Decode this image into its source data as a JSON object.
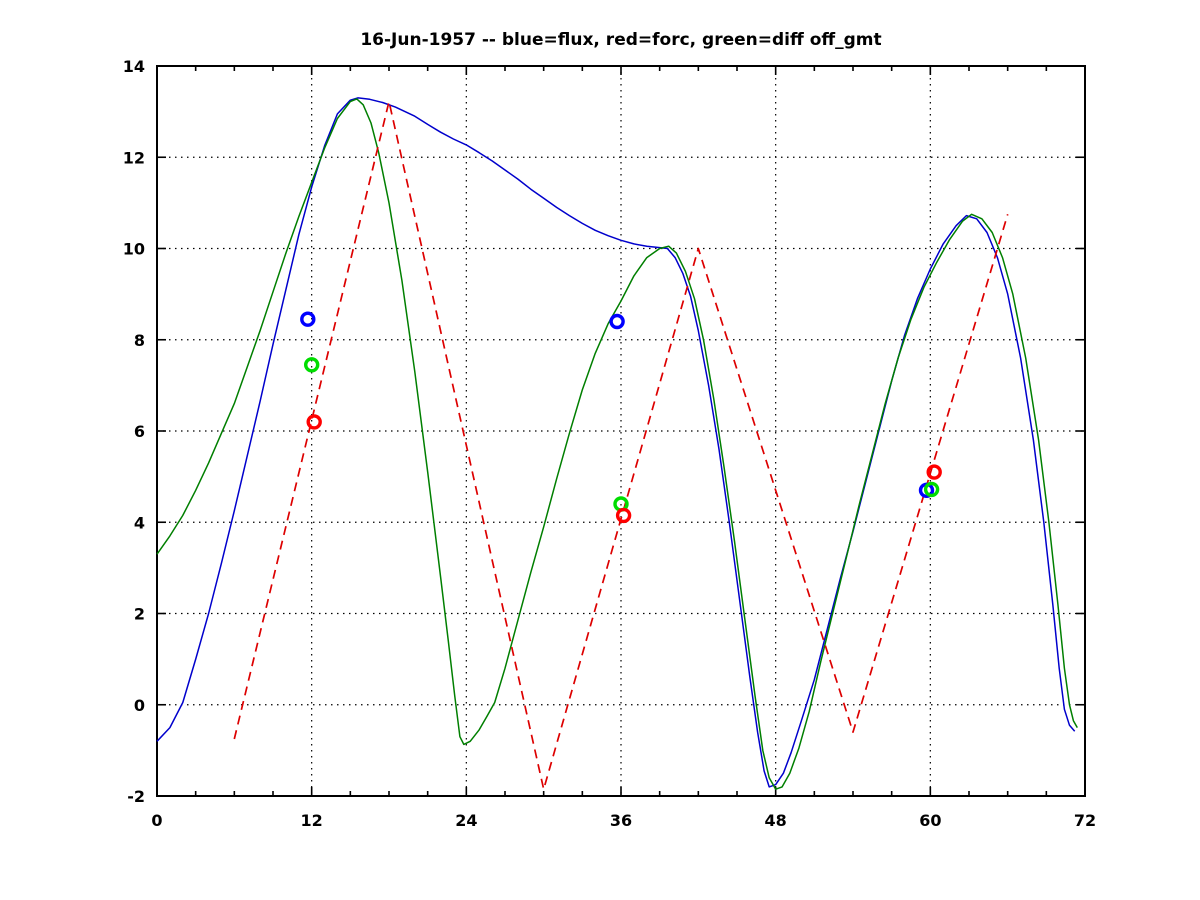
{
  "chart_data": {
    "type": "line",
    "title": "16-Jun-1957 -- blue=flux, red=forc, green=diff off_gmt",
    "xlabel": "",
    "ylabel": "",
    "xlim": [
      0,
      72
    ],
    "ylim": [
      -2,
      14
    ],
    "xticks": [
      0,
      12,
      24,
      36,
      48,
      60,
      72
    ],
    "yticks": [
      -2,
      0,
      2,
      4,
      6,
      8,
      10,
      12,
      14
    ],
    "xminor_step": 3,
    "grid": "dotted",
    "grid_color": "#000000",
    "axes_color": "#000000",
    "background": "#ffffff",
    "legend_in_title": [
      {
        "label": "flux",
        "color_word": "blue"
      },
      {
        "label": "forc",
        "color_word": "red"
      },
      {
        "label": "diff",
        "color_word": "green"
      }
    ],
    "series": [
      {
        "name": "flux",
        "color": "#0000cc",
        "style": "solid",
        "points": [
          [
            0,
            -0.8
          ],
          [
            1,
            -0.5
          ],
          [
            2,
            0.05
          ],
          [
            3,
            1.0
          ],
          [
            4,
            2.0
          ],
          [
            5,
            3.1
          ],
          [
            6,
            4.25
          ],
          [
            7,
            5.45
          ],
          [
            8,
            6.65
          ],
          [
            9,
            7.9
          ],
          [
            10,
            9.1
          ],
          [
            11,
            10.3
          ],
          [
            12,
            11.35
          ],
          [
            13,
            12.25
          ],
          [
            14,
            12.95
          ],
          [
            15,
            13.25
          ],
          [
            15.6,
            13.3
          ],
          [
            16.5,
            13.27
          ],
          [
            17.5,
            13.2
          ],
          [
            18.5,
            13.1
          ],
          [
            20,
            12.9
          ],
          [
            21,
            12.72
          ],
          [
            22,
            12.55
          ],
          [
            23,
            12.4
          ],
          [
            24,
            12.27
          ],
          [
            25,
            12.1
          ],
          [
            26,
            11.92
          ],
          [
            27,
            11.72
          ],
          [
            28,
            11.52
          ],
          [
            29,
            11.3
          ],
          [
            30,
            11.1
          ],
          [
            31,
            10.9
          ],
          [
            32,
            10.72
          ],
          [
            33,
            10.55
          ],
          [
            34,
            10.4
          ],
          [
            35,
            10.28
          ],
          [
            36,
            10.18
          ],
          [
            37,
            10.1
          ],
          [
            38,
            10.05
          ],
          [
            39,
            10.02
          ],
          [
            39.6,
            10.0
          ],
          [
            40.2,
            9.8
          ],
          [
            40.8,
            9.45
          ],
          [
            41.4,
            8.95
          ],
          [
            42,
            8.2
          ],
          [
            42.8,
            7.0
          ],
          [
            43.6,
            5.6
          ],
          [
            44.4,
            4.0
          ],
          [
            45.2,
            2.3
          ],
          [
            46,
            0.6
          ],
          [
            46.6,
            -0.6
          ],
          [
            47.1,
            -1.45
          ],
          [
            47.5,
            -1.8
          ],
          [
            48,
            -1.75
          ],
          [
            48.6,
            -1.5
          ],
          [
            49.2,
            -1.05
          ],
          [
            50,
            -0.35
          ],
          [
            51,
            0.55
          ],
          [
            52,
            1.65
          ],
          [
            53,
            2.75
          ],
          [
            54,
            3.8
          ],
          [
            55,
            4.9
          ],
          [
            56,
            6.0
          ],
          [
            57,
            7.1
          ],
          [
            58,
            8.1
          ],
          [
            59,
            8.9
          ],
          [
            60,
            9.55
          ],
          [
            61,
            10.1
          ],
          [
            62,
            10.5
          ],
          [
            62.8,
            10.72
          ],
          [
            63.6,
            10.65
          ],
          [
            64.4,
            10.35
          ],
          [
            65.2,
            9.8
          ],
          [
            66,
            9.0
          ],
          [
            67,
            7.6
          ],
          [
            68,
            5.8
          ],
          [
            68.8,
            4.0
          ],
          [
            69.5,
            2.2
          ],
          [
            70,
            0.8
          ],
          [
            70.4,
            -0.1
          ],
          [
            70.8,
            -0.45
          ],
          [
            71.2,
            -0.58
          ]
        ]
      },
      {
        "name": "diff",
        "color": "#007f00",
        "style": "solid",
        "points": [
          [
            0,
            3.3
          ],
          [
            1,
            3.7
          ],
          [
            2,
            4.15
          ],
          [
            3,
            4.7
          ],
          [
            4,
            5.3
          ],
          [
            5,
            5.95
          ],
          [
            6,
            6.6
          ],
          [
            7,
            7.4
          ],
          [
            8,
            8.2
          ],
          [
            9,
            9.05
          ],
          [
            10,
            9.9
          ],
          [
            11,
            10.7
          ],
          [
            12,
            11.45
          ],
          [
            13,
            12.2
          ],
          [
            14,
            12.85
          ],
          [
            15,
            13.22
          ],
          [
            15.5,
            13.28
          ],
          [
            16,
            13.15
          ],
          [
            16.6,
            12.75
          ],
          [
            17.2,
            12.1
          ],
          [
            18,
            11.0
          ],
          [
            19,
            9.3
          ],
          [
            20,
            7.3
          ],
          [
            21,
            5.1
          ],
          [
            22,
            2.8
          ],
          [
            22.6,
            1.4
          ],
          [
            23.1,
            0.2
          ],
          [
            23.5,
            -0.7
          ],
          [
            23.8,
            -0.87
          ],
          [
            24.3,
            -0.8
          ],
          [
            25,
            -0.55
          ],
          [
            25.6,
            -0.25
          ],
          [
            26.2,
            0.05
          ],
          [
            27,
            0.8
          ],
          [
            28,
            1.85
          ],
          [
            29,
            2.9
          ],
          [
            30,
            3.9
          ],
          [
            31,
            4.95
          ],
          [
            32,
            5.95
          ],
          [
            33,
            6.9
          ],
          [
            34,
            7.7
          ],
          [
            35,
            8.35
          ],
          [
            36,
            8.85
          ],
          [
            37,
            9.4
          ],
          [
            38,
            9.8
          ],
          [
            39,
            10.0
          ],
          [
            39.7,
            10.05
          ],
          [
            40.3,
            9.9
          ],
          [
            41,
            9.5
          ],
          [
            41.7,
            8.9
          ],
          [
            42.4,
            8.0
          ],
          [
            43.2,
            6.7
          ],
          [
            44,
            5.2
          ],
          [
            44.8,
            3.6
          ],
          [
            45.6,
            1.9
          ],
          [
            46.4,
            0.2
          ],
          [
            47,
            -1.0
          ],
          [
            47.5,
            -1.6
          ],
          [
            48,
            -1.85
          ],
          [
            48.5,
            -1.8
          ],
          [
            49.1,
            -1.5
          ],
          [
            49.8,
            -0.95
          ],
          [
            50.6,
            -0.15
          ],
          [
            51.5,
            0.95
          ],
          [
            52.5,
            2.1
          ],
          [
            53.5,
            3.25
          ],
          [
            54.5,
            4.4
          ],
          [
            55.5,
            5.5
          ],
          [
            56.5,
            6.6
          ],
          [
            57.5,
            7.6
          ],
          [
            58.5,
            8.45
          ],
          [
            59.5,
            9.15
          ],
          [
            60.5,
            9.7
          ],
          [
            61.5,
            10.2
          ],
          [
            62.5,
            10.6
          ],
          [
            63.2,
            10.75
          ],
          [
            64,
            10.65
          ],
          [
            64.8,
            10.35
          ],
          [
            65.6,
            9.8
          ],
          [
            66.4,
            9.0
          ],
          [
            67.4,
            7.6
          ],
          [
            68.4,
            5.8
          ],
          [
            69.2,
            4.0
          ],
          [
            69.9,
            2.2
          ],
          [
            70.4,
            0.8
          ],
          [
            70.8,
            0.0
          ],
          [
            71.1,
            -0.35
          ],
          [
            71.4,
            -0.5
          ]
        ]
      },
      {
        "name": "forc",
        "color": "#dd0000",
        "style": "dashed",
        "points": [
          [
            6,
            -0.75
          ],
          [
            18,
            13.22
          ],
          [
            30,
            -1.85
          ],
          [
            42,
            10.0
          ],
          [
            54,
            -0.6
          ],
          [
            66,
            10.75
          ]
        ]
      }
    ],
    "markers": [
      {
        "name": "flux-sample-points",
        "color": "#0000ff",
        "shape": "circle",
        "points": [
          [
            11.7,
            8.45
          ],
          [
            35.7,
            8.4
          ],
          [
            59.7,
            4.7
          ]
        ]
      },
      {
        "name": "diff-sample-points",
        "color": "#00dd00",
        "shape": "circle",
        "points": [
          [
            12.0,
            7.45
          ],
          [
            36.0,
            4.4
          ],
          [
            60.1,
            4.72
          ]
        ]
      },
      {
        "name": "forc-sample-points",
        "color": "#ff0000",
        "shape": "circle",
        "points": [
          [
            12.2,
            6.2
          ],
          [
            36.2,
            4.15
          ],
          [
            60.3,
            5.1
          ]
        ]
      }
    ]
  }
}
